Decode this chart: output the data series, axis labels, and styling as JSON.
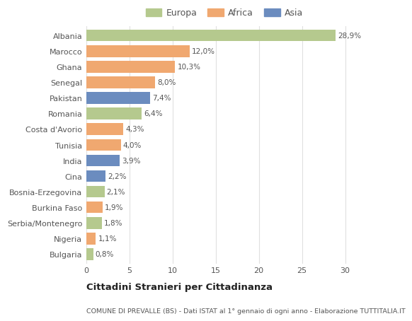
{
  "countries": [
    "Albania",
    "Marocco",
    "Ghana",
    "Senegal",
    "Pakistan",
    "Romania",
    "Costa d'Avorio",
    "Tunisia",
    "India",
    "Cina",
    "Bosnia-Erzegovina",
    "Burkina Faso",
    "Serbia/Montenegro",
    "Nigeria",
    "Bulgaria"
  ],
  "values": [
    28.9,
    12.0,
    10.3,
    8.0,
    7.4,
    6.4,
    4.3,
    4.0,
    3.9,
    2.2,
    2.1,
    1.9,
    1.8,
    1.1,
    0.8
  ],
  "labels": [
    "28,9%",
    "12,0%",
    "10,3%",
    "8,0%",
    "7,4%",
    "6,4%",
    "4,3%",
    "4,0%",
    "3,9%",
    "2,2%",
    "2,1%",
    "1,9%",
    "1,8%",
    "1,1%",
    "0,8%"
  ],
  "continents": [
    "Europa",
    "Africa",
    "Africa",
    "Africa",
    "Asia",
    "Europa",
    "Africa",
    "Africa",
    "Asia",
    "Asia",
    "Europa",
    "Africa",
    "Europa",
    "Africa",
    "Europa"
  ],
  "colors": {
    "Europa": "#b5c98e",
    "Africa": "#f0a870",
    "Asia": "#6b8cbf"
  },
  "title1": "Cittadini Stranieri per Cittadinanza",
  "title2": "COMUNE DI PREVALLE (BS) - Dati ISTAT al 1° gennaio di ogni anno - Elaborazione TUTTITALIA.IT",
  "xlim": [
    0,
    32
  ],
  "xticks": [
    0,
    5,
    10,
    15,
    20,
    25,
    30
  ],
  "plot_bg": "#ffffff",
  "fig_bg": "#ffffff",
  "grid_color": "#e0e0e0",
  "bar_height": 0.75
}
